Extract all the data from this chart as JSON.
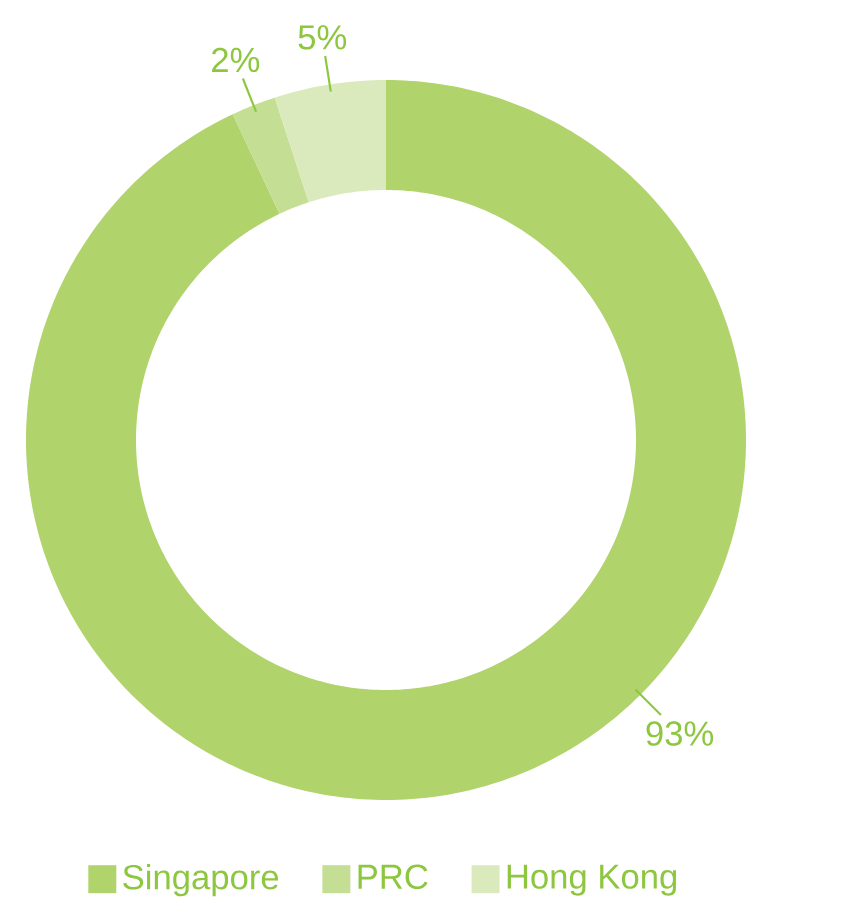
{
  "chart_data": {
    "type": "donut",
    "categories": [
      "Singapore",
      "PRC",
      "Hong Kong"
    ],
    "values": [
      93,
      2,
      5
    ],
    "colors": [
      "#b1d36c",
      "#c4de93",
      "#dbeabc"
    ],
    "value_labels": [
      "93%",
      "2%",
      "5%"
    ],
    "legend": "bottom"
  }
}
